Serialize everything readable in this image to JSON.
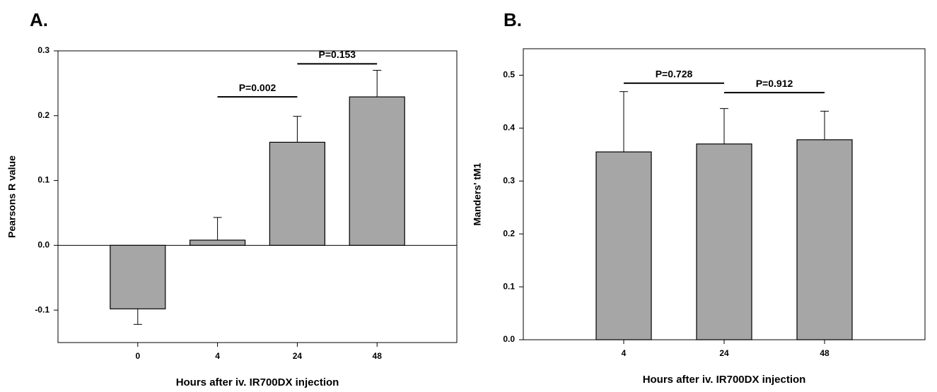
{
  "chart_data": [
    {
      "type": "bar",
      "label": "A.",
      "ylabel": "Pearsons R value",
      "xlabel": "Hours after iv. IR700DX injection",
      "categories": [
        "0",
        "4",
        "24",
        "48"
      ],
      "values": [
        -0.098,
        0.008,
        0.159,
        0.229
      ],
      "errors": [
        0.024,
        0.035,
        0.04,
        0.041
      ],
      "color": "#a6a6a6",
      "ylim": [
        -0.15,
        0.3
      ],
      "yticks": [
        -0.1,
        {
          "value": 0,
          "label": "0.0"
        },
        0.1,
        0.2,
        0.3
      ],
      "annotations": [
        {
          "text": "P=0.002",
          "between": [
            1,
            2
          ],
          "y": 0.229
        },
        {
          "text": "P=0.153",
          "between": [
            2,
            3
          ],
          "y": 0.28
        }
      ]
    },
    {
      "type": "bar",
      "label": "B.",
      "ylabel": "Manders' tM1",
      "xlabel": "Hours after iv. IR700DX injection",
      "categories": [
        "4",
        "24",
        "48"
      ],
      "values": [
        0.355,
        0.37,
        0.378
      ],
      "errors": [
        0.114,
        0.067,
        0.054
      ],
      "color": "#a6a6a6",
      "ylim": [
        0,
        0.55
      ],
      "yticks": [
        {
          "value": 0,
          "label": "0.0"
        },
        0.1,
        0.2,
        0.3,
        0.4,
        0.5
      ],
      "annotations": [
        {
          "text": "P=0.728",
          "between": [
            0,
            1
          ],
          "y": 0.485
        },
        {
          "text": "P=0.912",
          "between": [
            1,
            2
          ],
          "y": 0.467
        }
      ]
    }
  ]
}
